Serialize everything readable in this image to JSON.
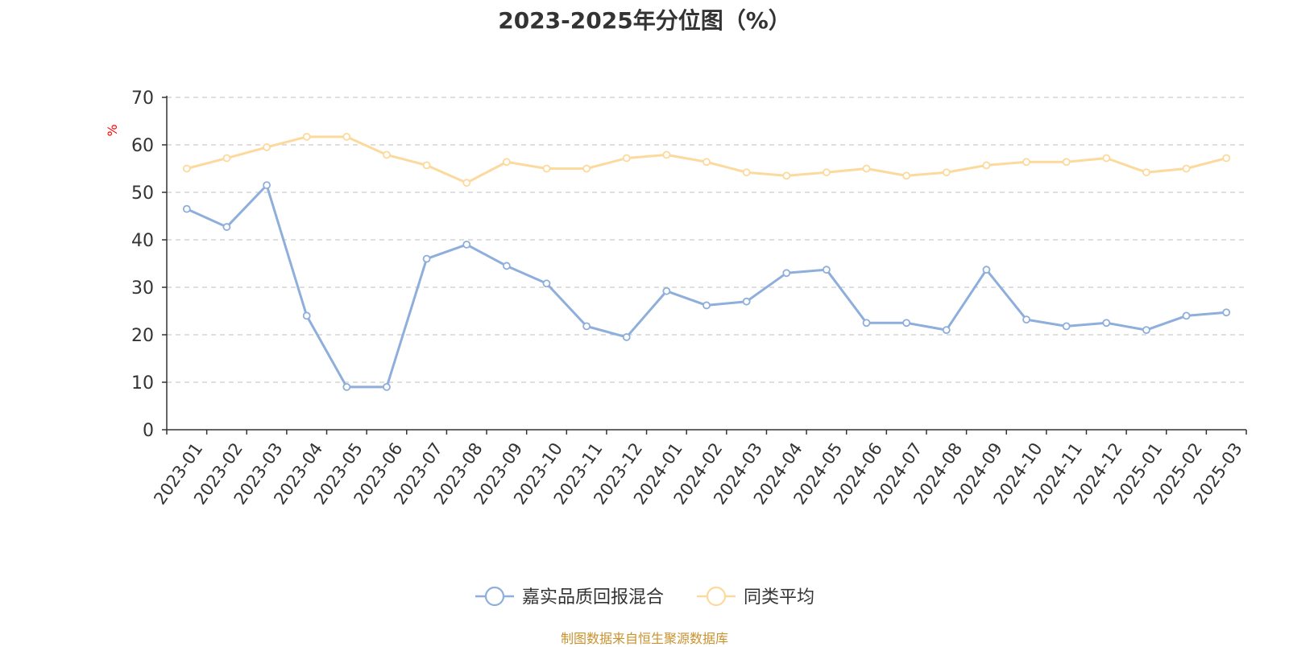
{
  "title": "2023-2025年分位图（%）",
  "footer": "制图数据来自恒生聚源数据库",
  "colors": {
    "series1": "#8eaedb",
    "series2": "#fcd99c",
    "unit": "#ff0000",
    "grid": "#cccccc",
    "axis": "#333333"
  },
  "chart_data": {
    "type": "line",
    "title": "2023-2025年分位图（%）",
    "ylabel": "%",
    "ylim": [
      0,
      70
    ],
    "yticks": [
      0,
      10,
      20,
      30,
      40,
      50,
      60,
      70
    ],
    "grid": true,
    "legend_position": "bottom-center",
    "categories": [
      "2023-01",
      "2023-02",
      "2023-03",
      "2023-04",
      "2023-05",
      "2023-06",
      "2023-07",
      "2023-08",
      "2023-09",
      "2023-10",
      "2023-11",
      "2023-12",
      "2024-01",
      "2024-02",
      "2024-03",
      "2024-04",
      "2024-05",
      "2024-06",
      "2024-07",
      "2024-08",
      "2024-09",
      "2024-10",
      "2024-11",
      "2024-12",
      "2025-01",
      "2025-02",
      "2025-03"
    ],
    "series": [
      {
        "name": "嘉实品质回报混合",
        "color": "#8eaedb",
        "values": [
          46.5,
          42.7,
          51.5,
          24.0,
          9.0,
          9.0,
          36.0,
          39.0,
          34.5,
          30.8,
          21.8,
          19.5,
          29.2,
          26.2,
          27.0,
          33.0,
          33.7,
          22.5,
          22.5,
          21.0,
          33.7,
          23.2,
          21.8,
          22.5,
          21.0,
          24.0,
          24.7
        ]
      },
      {
        "name": "同类平均",
        "color": "#fcd99c",
        "values": [
          55.0,
          57.2,
          59.5,
          61.7,
          61.7,
          57.9,
          55.7,
          52.0,
          56.4,
          55.0,
          55.0,
          57.2,
          57.9,
          56.4,
          54.2,
          53.5,
          54.2,
          55.0,
          53.5,
          54.2,
          55.7,
          56.4,
          56.4,
          57.2,
          54.2,
          55.0,
          57.2
        ]
      }
    ]
  }
}
